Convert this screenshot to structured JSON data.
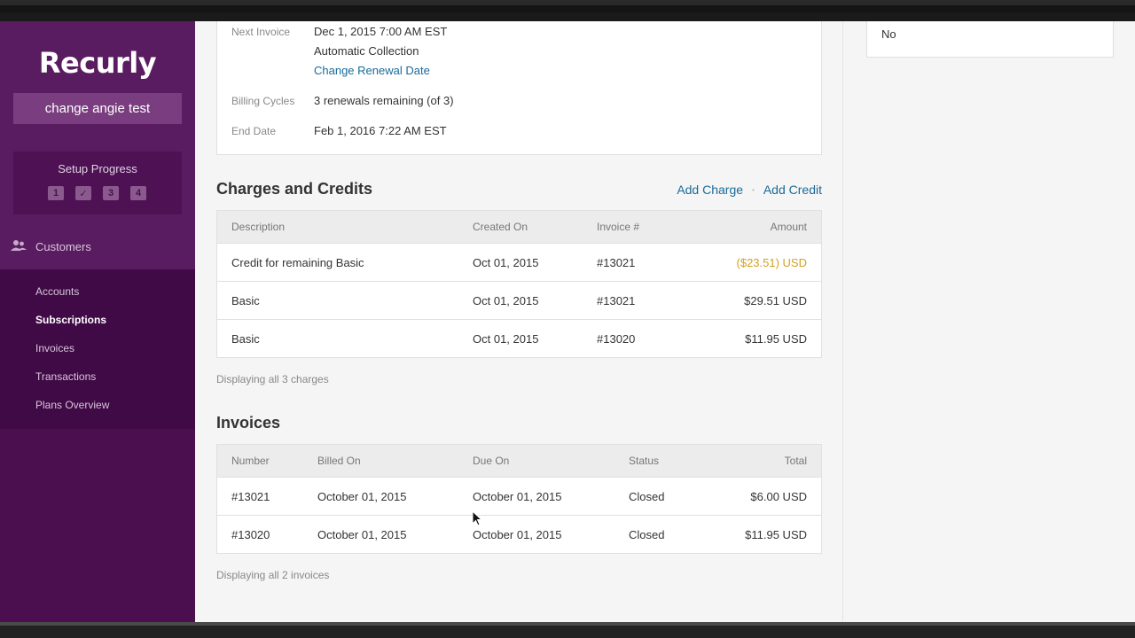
{
  "app": {
    "logo": "Recurly",
    "site_name": "change angie test"
  },
  "setup": {
    "title": "Setup Progress",
    "steps": [
      "1",
      "✓",
      "3",
      "4"
    ]
  },
  "nav": {
    "section_label": "Customers",
    "section_icon": "people-icon",
    "items": [
      {
        "label": "Accounts",
        "active": false
      },
      {
        "label": "Subscriptions",
        "active": true
      },
      {
        "label": "Invoices",
        "active": false
      },
      {
        "label": "Transactions",
        "active": false
      },
      {
        "label": "Plans Overview",
        "active": false
      }
    ]
  },
  "subscription": {
    "next_invoice_label": "Next Invoice",
    "next_invoice_date": "Dec 1, 2015 7:00 AM EST",
    "collection": "Automatic Collection",
    "change_renewal_link": "Change Renewal Date",
    "billing_cycles_label": "Billing Cycles",
    "billing_cycles_value": "3 renewals remaining (of 3)",
    "end_date_label": "End Date",
    "end_date_value": "Feb 1, 2016 7:22 AM EST"
  },
  "right_panel": {
    "value": "No"
  },
  "charges": {
    "title": "Charges and Credits",
    "add_charge": "Add Charge",
    "separator": "•",
    "add_credit": "Add Credit",
    "headers": {
      "description": "Description",
      "created_on": "Created On",
      "invoice": "Invoice #",
      "amount": "Amount"
    },
    "rows": [
      {
        "description": "Credit for remaining Basic",
        "created_on": "Oct 01, 2015",
        "invoice": "#13021",
        "amount": "($23.51) USD"
      },
      {
        "description": "Basic",
        "created_on": "Oct 01, 2015",
        "invoice": "#13021",
        "amount": "$29.51 USD"
      },
      {
        "description": "Basic",
        "created_on": "Oct 01, 2015",
        "invoice": "#13020",
        "amount": "$11.95 USD"
      }
    ],
    "footnote": "Displaying all 3 charges"
  },
  "invoices": {
    "title": "Invoices",
    "headers": {
      "number": "Number",
      "billed_on": "Billed On",
      "due_on": "Due On",
      "status": "Status",
      "total": "Total"
    },
    "rows": [
      {
        "number": "#13021",
        "billed_on": "October 01, 2015",
        "due_on": "October 01, 2015",
        "status": "Closed",
        "total": "$6.00 USD"
      },
      {
        "number": "#13020",
        "billed_on": "October 01, 2015",
        "due_on": "October 01, 2015",
        "status": "Closed",
        "total": "$11.95 USD"
      }
    ],
    "footnote": "Displaying all 2 invoices"
  },
  "colors": {
    "sidebar": "#4b0f50",
    "link": "#1a6a9a",
    "credit": "#d4a020"
  }
}
